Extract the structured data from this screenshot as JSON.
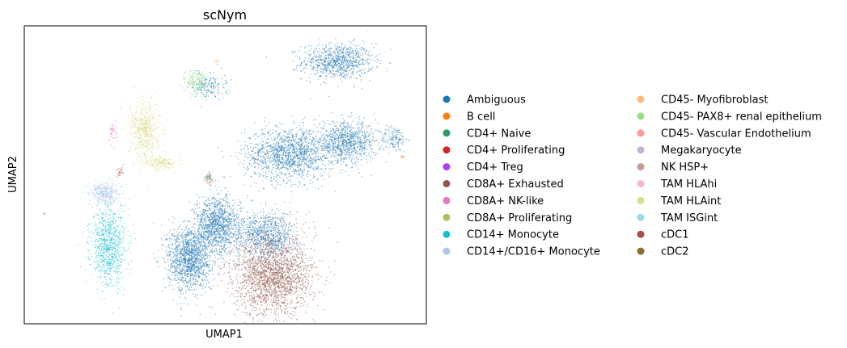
{
  "chart_data": {
    "type": "scatter",
    "title": "scNym",
    "xlabel": "UMAP1",
    "ylabel": "UMAP2",
    "x_ticks": "none",
    "y_ticks": "none",
    "grid": false,
    "legend_position": "right, two columns",
    "legend": [
      {
        "name": "Ambiguous",
        "color": "#1f77b4"
      },
      {
        "name": "B cell",
        "color": "#ff7f0e"
      },
      {
        "name": "CD4+ Naive",
        "color": "#279e68"
      },
      {
        "name": "CD4+ Proliferating",
        "color": "#d62728"
      },
      {
        "name": "CD4+ Treg",
        "color": "#aa40fc"
      },
      {
        "name": "CD8A+ Exhausted",
        "color": "#8c564b"
      },
      {
        "name": "CD8A+ NK-like",
        "color": "#e377c2"
      },
      {
        "name": "CD8A+ Proliferating",
        "color": "#b5bd61"
      },
      {
        "name": "CD14+ Monocyte",
        "color": "#17becf"
      },
      {
        "name": "CD14+/CD16+ Monocyte",
        "color": "#aec7e8"
      },
      {
        "name": "CD45- Myofibroblast",
        "color": "#ffbb78"
      },
      {
        "name": "CD45- PAX8+ renal epithelium",
        "color": "#98df8a"
      },
      {
        "name": "CD45- Vascular Endothelium",
        "color": "#ff9896"
      },
      {
        "name": "Megakaryocyte",
        "color": "#c5b0d5"
      },
      {
        "name": "NK HSP+",
        "color": "#c49c94"
      },
      {
        "name": "TAM HLAhi",
        "color": "#f7b6d2"
      },
      {
        "name": "TAM HLAint",
        "color": "#dbdb8d"
      },
      {
        "name": "TAM ISGint",
        "color": "#9edae5"
      },
      {
        "name": "cDC1",
        "color": "#ad494a"
      },
      {
        "name": "cDC2",
        "color": "#8c6d31"
      }
    ],
    "clusters": [
      {
        "category": "Ambiguous",
        "cx": 0.78,
        "cy": 0.88,
        "rx": 0.08,
        "ry": 0.055,
        "n": 900
      },
      {
        "category": "Ambiguous",
        "cx": 0.92,
        "cy": 0.62,
        "rx": 0.03,
        "ry": 0.04,
        "n": 150
      },
      {
        "category": "Ambiguous",
        "cx": 0.66,
        "cy": 0.57,
        "rx": 0.1,
        "ry": 0.08,
        "n": 1500
      },
      {
        "category": "Ambiguous",
        "cx": 0.8,
        "cy": 0.61,
        "rx": 0.07,
        "ry": 0.06,
        "n": 900
      },
      {
        "category": "Ambiguous",
        "cx": 0.48,
        "cy": 0.33,
        "rx": 0.05,
        "ry": 0.09,
        "n": 1200
      },
      {
        "category": "Ambiguous",
        "cx": 0.41,
        "cy": 0.22,
        "rx": 0.05,
        "ry": 0.1,
        "n": 1400
      },
      {
        "category": "Ambiguous",
        "cx": 0.6,
        "cy": 0.3,
        "rx": 0.07,
        "ry": 0.07,
        "n": 900
      },
      {
        "category": "Ambiguous",
        "cx": 0.46,
        "cy": 0.8,
        "rx": 0.04,
        "ry": 0.04,
        "n": 180
      },
      {
        "category": "CD8A+ Exhausted",
        "cx": 0.62,
        "cy": 0.16,
        "rx": 0.09,
        "ry": 0.12,
        "n": 2200
      },
      {
        "category": "TAM HLAint",
        "cx": 0.3,
        "cy": 0.65,
        "rx": 0.035,
        "ry": 0.09,
        "n": 700
      },
      {
        "category": "TAM HLAint",
        "cx": 0.34,
        "cy": 0.54,
        "rx": 0.04,
        "ry": 0.02,
        "n": 200
      },
      {
        "category": "CD14+ Monocyte",
        "cx": 0.21,
        "cy": 0.26,
        "rx": 0.04,
        "ry": 0.12,
        "n": 900
      },
      {
        "category": "CD14+/CD16+ Monocyte",
        "cx": 0.2,
        "cy": 0.44,
        "rx": 0.035,
        "ry": 0.035,
        "n": 400
      },
      {
        "category": "CD45- PAX8+ renal epithelium",
        "cx": 0.43,
        "cy": 0.81,
        "rx": 0.025,
        "ry": 0.04,
        "n": 220
      },
      {
        "category": "NK HSP+",
        "cx": 0.46,
        "cy": 0.49,
        "rx": 0.01,
        "ry": 0.02,
        "n": 70
      },
      {
        "category": "CD8A+ NK-like",
        "cx": 0.22,
        "cy": 0.64,
        "rx": 0.01,
        "ry": 0.03,
        "n": 50
      },
      {
        "category": "CD4+ Naive",
        "cx": 0.46,
        "cy": 0.49,
        "rx": 0.01,
        "ry": 0.01,
        "n": 20
      },
      {
        "category": "B cell",
        "cx": 0.94,
        "cy": 0.56,
        "rx": 0.004,
        "ry": 0.004,
        "n": 10
      },
      {
        "category": "CD45- Myofibroblast",
        "cx": 0.48,
        "cy": 0.88,
        "rx": 0.004,
        "ry": 0.006,
        "n": 10
      },
      {
        "category": "cDC1",
        "cx": 0.24,
        "cy": 0.51,
        "rx": 0.01,
        "ry": 0.02,
        "n": 25
      },
      {
        "category": "Megakaryocyte",
        "cx": 0.05,
        "cy": 0.37,
        "rx": 0.004,
        "ry": 0.004,
        "n": 12
      }
    ]
  }
}
